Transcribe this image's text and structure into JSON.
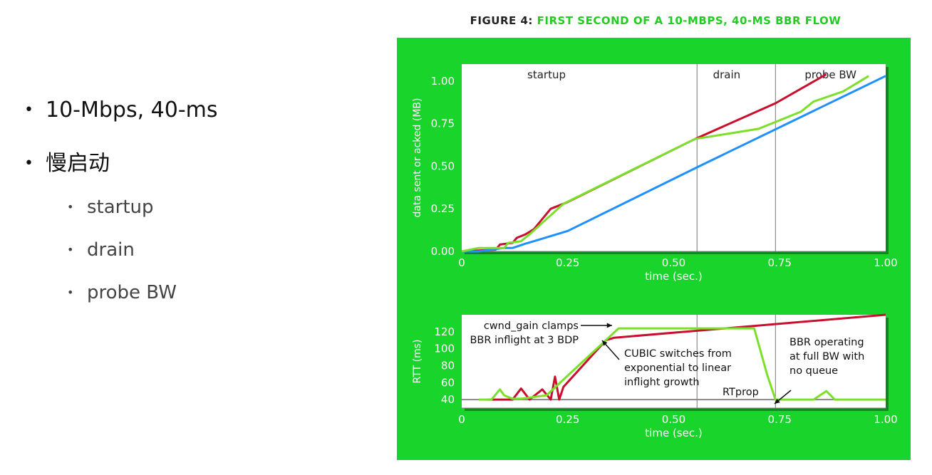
{
  "bullets": {
    "items": [
      {
        "text": "10-Mbps, 40-ms",
        "level": 1
      },
      {
        "text": "慢启动",
        "level": 1
      },
      {
        "text": "startup",
        "level": 2
      },
      {
        "text": "drain",
        "level": 2
      },
      {
        "text": "probe BW",
        "level": 2
      }
    ]
  },
  "figure": {
    "prefix": "FIGURE 4: ",
    "title": "FIRST SECOND OF A 10-MBPS, 40-MS BBR FLOW",
    "background": "#19d42a"
  },
  "chart_data": [
    {
      "type": "line",
      "xlabel": "time (sec.)",
      "ylabel": "data sent or acked (MB)",
      "xlim": [
        0,
        1.0
      ],
      "ylim": [
        0,
        1.1
      ],
      "xticks": [
        "0",
        "0.25",
        "0.50",
        "0.75",
        "1.00"
      ],
      "xtick_values": [
        0,
        0.25,
        0.5,
        0.75,
        1.0
      ],
      "yticks": [
        "0.00",
        "0.25",
        "0.50",
        "0.75",
        "1.00"
      ],
      "ytick_values": [
        0,
        0.25,
        0.5,
        0.75,
        1.0
      ],
      "phase_lines": [
        0.555,
        0.74
      ],
      "phases": [
        {
          "label": "startup",
          "x": 0.2
        },
        {
          "label": "drain",
          "x": 0.625
        },
        {
          "label": "probe BW",
          "x": 0.87
        }
      ],
      "series": [
        {
          "color": "#c8102e",
          "points": [
            [
              0,
              0
            ],
            [
              0.04,
              0.005
            ],
            [
              0.08,
              0.01
            ],
            [
              0.09,
              0.04
            ],
            [
              0.12,
              0.05
            ],
            [
              0.13,
              0.08
            ],
            [
              0.15,
              0.1
            ],
            [
              0.17,
              0.13
            ],
            [
              0.21,
              0.25
            ],
            [
              0.25,
              0.29
            ],
            [
              0.55,
              0.66
            ],
            [
              0.74,
              0.87
            ],
            [
              0.86,
              1.04
            ]
          ]
        },
        {
          "color": "#1e90ff",
          "points": [
            [
              0,
              0
            ],
            [
              0.04,
              0.0
            ],
            [
              0.1,
              0.02
            ],
            [
              0.12,
              0.02
            ],
            [
              0.15,
              0.045
            ],
            [
              0.17,
              0.06
            ],
            [
              0.25,
              0.12
            ],
            [
              0.56,
              0.5
            ],
            [
              1.0,
              1.03
            ]
          ]
        },
        {
          "color": "#7ce02a",
          "points": [
            [
              0,
              0
            ],
            [
              0.04,
              0.02
            ],
            [
              0.1,
              0.02
            ],
            [
              0.11,
              0.05
            ],
            [
              0.14,
              0.06
            ],
            [
              0.16,
              0.1
            ],
            [
              0.24,
              0.28
            ],
            [
              0.55,
              0.66
            ],
            [
              0.7,
              0.72
            ],
            [
              0.8,
              0.82
            ],
            [
              0.83,
              0.88
            ],
            [
              0.9,
              0.94
            ],
            [
              0.96,
              1.03
            ]
          ]
        }
      ]
    },
    {
      "type": "line",
      "xlabel": "time (sec.)",
      "ylabel": "RTT (ms)",
      "xlim": [
        0,
        1.0
      ],
      "ylim": [
        30,
        140
      ],
      "xticks": [
        "0",
        "0.25",
        "0.50",
        "0.75",
        "1.00"
      ],
      "xtick_values": [
        0,
        0.25,
        0.5,
        0.75,
        1.0
      ],
      "yticks": [
        "40",
        "60",
        "80",
        "100",
        "120"
      ],
      "ytick_values": [
        40,
        60,
        80,
        100,
        120
      ],
      "phase_lines": [
        0.555,
        0.74
      ],
      "baseline": 40,
      "series": [
        {
          "color": "#c8102e",
          "points": [
            [
              0.06,
              40
            ],
            [
              0.1,
              40
            ],
            [
              0.12,
              40
            ],
            [
              0.14,
              53
            ],
            [
              0.16,
              40
            ],
            [
              0.19,
              52
            ],
            [
              0.21,
              40
            ],
            [
              0.22,
              67
            ],
            [
              0.23,
              40
            ],
            [
              0.24,
              55
            ],
            [
              0.34,
              110
            ],
            [
              0.36,
              113
            ],
            [
              1.0,
              140
            ]
          ]
        },
        {
          "color": "#7ce02a",
          "points": [
            [
              0.04,
              40
            ],
            [
              0.06,
              40
            ],
            [
              0.07,
              40
            ],
            [
              0.09,
              52
            ],
            [
              0.1,
              45
            ],
            [
              0.12,
              41
            ],
            [
              0.14,
              41
            ],
            [
              0.2,
              45
            ],
            [
              0.34,
              110
            ],
            [
              0.37,
              124
            ],
            [
              0.55,
              124
            ],
            [
              0.69,
              124
            ],
            [
              0.72,
              70
            ],
            [
              0.74,
              40
            ],
            [
              0.83,
              40
            ],
            [
              0.86,
              50
            ],
            [
              0.88,
              40
            ],
            [
              1.0,
              40
            ]
          ]
        }
      ],
      "annotations": [
        {
          "lines": [
            "cwnd_gain clamps",
            "BBR inflight at 3 BDP"
          ]
        },
        {
          "lines": [
            "CUBIC switches from",
            "exponential to linear",
            "inflight growth"
          ]
        },
        {
          "lines": [
            "RTprop"
          ]
        },
        {
          "lines": [
            "BBR operating",
            "at full BW with",
            "no queue"
          ]
        }
      ]
    }
  ]
}
